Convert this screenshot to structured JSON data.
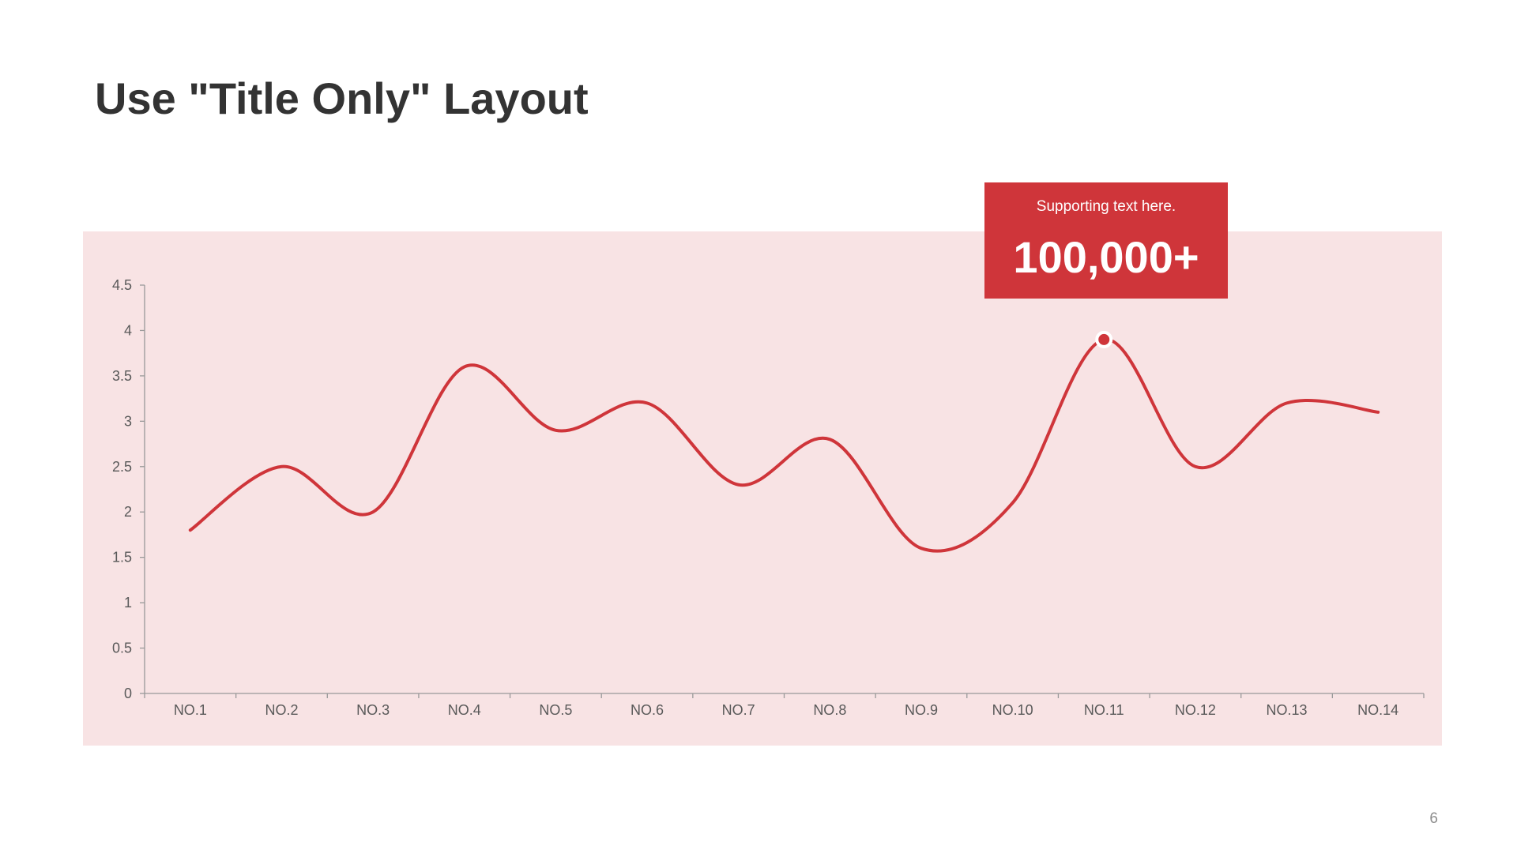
{
  "slide": {
    "title": "Use \"Title Only\" Layout",
    "page_number": "6"
  },
  "callout": {
    "supporting_text": "Supporting  text here.",
    "value": "100,000+"
  },
  "colors": {
    "accent": "#cf353a",
    "panel_background": "#f8e3e4",
    "title_text": "#333333",
    "axis": "#999999",
    "tick_text": "#595959"
  },
  "chart_data": {
    "type": "line",
    "categories": [
      "NO.1",
      "NO.2",
      "NO.3",
      "NO.4",
      "NO.5",
      "NO.6",
      "NO.7",
      "NO.8",
      "NO.9",
      "NO.10",
      "NO.11",
      "NO.12",
      "NO.13",
      "NO.14"
    ],
    "series": [
      {
        "values": [
          1.8,
          2.5,
          2.0,
          3.6,
          2.9,
          3.2,
          2.3,
          2.8,
          1.6,
          2.1,
          3.9,
          2.5,
          3.2,
          3.1
        ],
        "color": "#cf353a",
        "smooth": true
      }
    ],
    "highlight": {
      "category": "NO.11",
      "value": 3.9
    },
    "yticks": [
      0,
      0.5,
      1,
      1.5,
      2,
      2.5,
      3,
      3.5,
      4,
      4.5
    ],
    "ytick_labels": [
      "0",
      "0.5",
      "1",
      "1.5",
      "2",
      "2.5",
      "3",
      "3.5",
      "4",
      "4.5"
    ],
    "ylim": [
      0,
      4.5
    ],
    "grid": false,
    "legend": "none",
    "title": "",
    "xlabel": "",
    "ylabel": ""
  }
}
